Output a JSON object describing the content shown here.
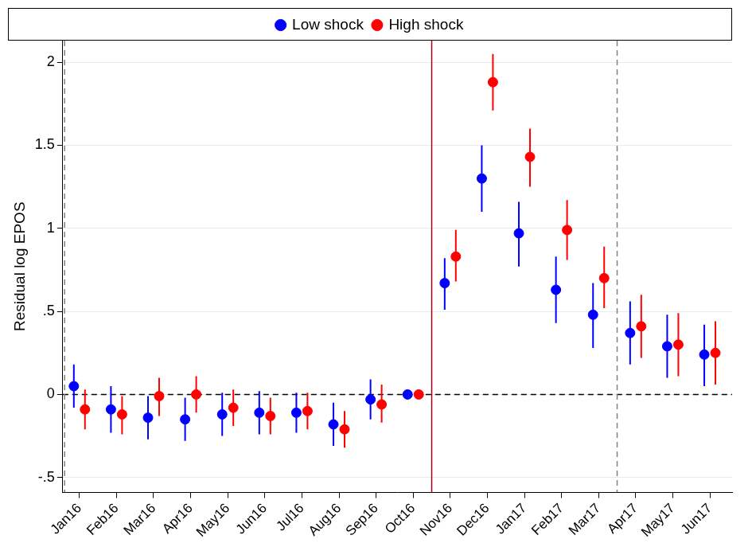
{
  "chart_data": {
    "type": "scatter",
    "y_label": "Residual log EPOS",
    "categories": [
      "Jan16",
      "Feb16",
      "Mar16",
      "Apr16",
      "May16",
      "Jun16",
      "Jul16",
      "Aug16",
      "Sep16",
      "Oct16",
      "Nov16",
      "Dec16",
      "Jan17",
      "Feb17",
      "Mar17",
      "Apr17",
      "May17",
      "Jun17"
    ],
    "series": [
      {
        "name": "Low shock",
        "color": "#0000ff",
        "marker": "circle",
        "values": [
          0.05,
          -0.09,
          -0.14,
          -0.15,
          -0.12,
          -0.11,
          -0.11,
          -0.18,
          -0.03,
          0,
          0.67,
          1.3,
          0.97,
          0.63,
          0.48,
          0.37,
          0.29,
          0.24
        ],
        "error_low": [
          -0.08,
          -0.23,
          -0.27,
          -0.28,
          -0.25,
          -0.24,
          -0.23,
          -0.31,
          -0.15,
          0,
          0.51,
          1.1,
          0.77,
          0.43,
          0.28,
          0.18,
          0.1,
          0.05
        ],
        "error_high": [
          0.18,
          0.05,
          -0.01,
          -0.02,
          0.01,
          0.02,
          0.01,
          -0.05,
          0.09,
          0,
          0.82,
          1.5,
          1.16,
          0.83,
          0.67,
          0.56,
          0.48,
          0.42
        ]
      },
      {
        "name": "High shock",
        "color": "#ff0000",
        "marker": "circle",
        "values": [
          -0.09,
          -0.12,
          -0.01,
          0.0,
          -0.08,
          -0.13,
          -0.1,
          -0.21,
          -0.06,
          0,
          0.83,
          1.88,
          1.43,
          0.99,
          0.7,
          0.41,
          0.3,
          0.25
        ],
        "error_low": [
          -0.21,
          -0.24,
          -0.13,
          -0.11,
          -0.19,
          -0.24,
          -0.21,
          -0.32,
          -0.17,
          0,
          0.68,
          1.71,
          1.25,
          0.81,
          0.52,
          0.22,
          0.11,
          0.06
        ],
        "error_high": [
          0.03,
          -0.01,
          0.1,
          0.11,
          0.03,
          -0.02,
          0.01,
          -0.1,
          0.06,
          0,
          0.99,
          2.05,
          1.6,
          1.17,
          0.89,
          0.6,
          0.49,
          0.44
        ]
      }
    ],
    "ylim": [
      -0.59,
      2.13
    ],
    "yticks": [
      {
        "value": -0.5,
        "label": "-.5"
      },
      0,
      {
        "value": 0.5,
        "label": ".5"
      },
      1,
      1.5,
      2
    ],
    "hline": {
      "y": 0,
      "color": "#000000",
      "line_style": "dashed"
    },
    "vlines": [
      {
        "before": "Jan16",
        "color": "#808080",
        "line_style": "dashed"
      },
      {
        "after": "Oct16",
        "color": "#a50021",
        "line_style": "solid"
      },
      {
        "after": "Mar17",
        "color": "#808080",
        "line_style": "dashed"
      }
    ],
    "grid": true,
    "legend": "top"
  }
}
